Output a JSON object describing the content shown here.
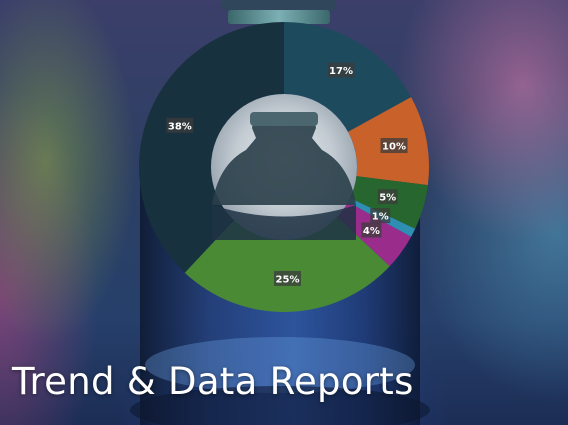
{
  "headline": "Trend & Data Reports",
  "chart_data": {
    "type": "pie",
    "donut": true,
    "start_angle_deg": 0,
    "direction": "clockwise",
    "slices": [
      {
        "value": 17,
        "label": "17%",
        "color": "#1e4a5e"
      },
      {
        "value": 10,
        "label": "10%",
        "color": "#c8612a"
      },
      {
        "value": 5,
        "label": "5%",
        "color": "#27672f"
      },
      {
        "value": 1,
        "label": "1%",
        "color": "#2f8fb2"
      },
      {
        "value": 4,
        "label": "4%",
        "color": "#9a2d8c"
      },
      {
        "value": 25,
        "label": "25%",
        "color": "#4a8a35"
      },
      {
        "value": 38,
        "label": "38%",
        "color": "#17313f"
      }
    ]
  }
}
